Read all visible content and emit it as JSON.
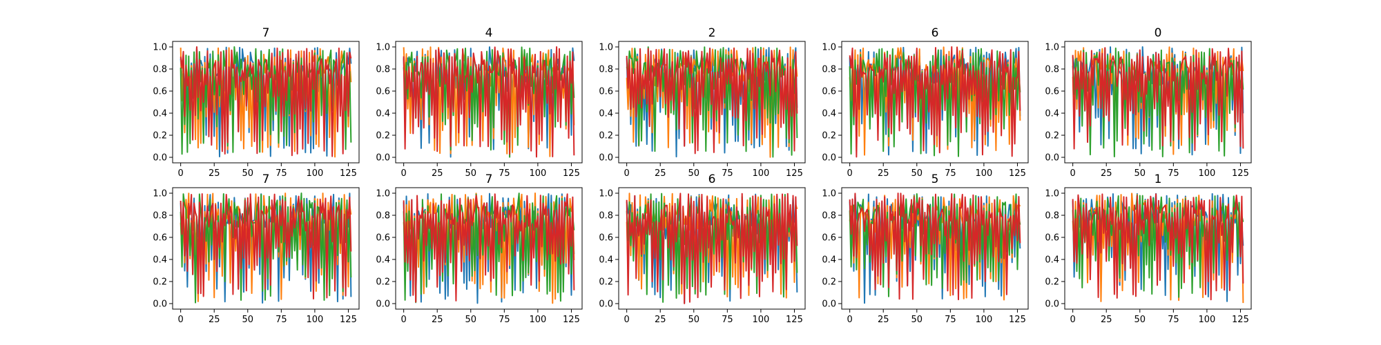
{
  "chart_data": {
    "type": "line",
    "layout": "2 rows x 5 columns",
    "xlim": [
      -6,
      133
    ],
    "ylim": [
      -0.05,
      1.05
    ],
    "xticks": [
      0,
      25,
      50,
      75,
      100,
      125
    ],
    "yticks": [
      0.0,
      0.2,
      0.4,
      0.6,
      0.8,
      1.0
    ],
    "ytick_labels": [
      "0.0",
      "0.2",
      "0.4",
      "0.6",
      "0.8",
      "1.0"
    ],
    "series_colors": [
      "#1f77b4",
      "#ff7f0e",
      "#2ca02c",
      "#d62728"
    ],
    "series_count": 4,
    "points_per_series": 128,
    "grid": false,
    "panels": [
      {
        "title": "7"
      },
      {
        "title": "4"
      },
      {
        "title": "2"
      },
      {
        "title": "6"
      },
      {
        "title": "0"
      },
      {
        "title": "7"
      },
      {
        "title": "7"
      },
      {
        "title": "6"
      },
      {
        "title": "5"
      },
      {
        "title": "1"
      }
    ]
  }
}
